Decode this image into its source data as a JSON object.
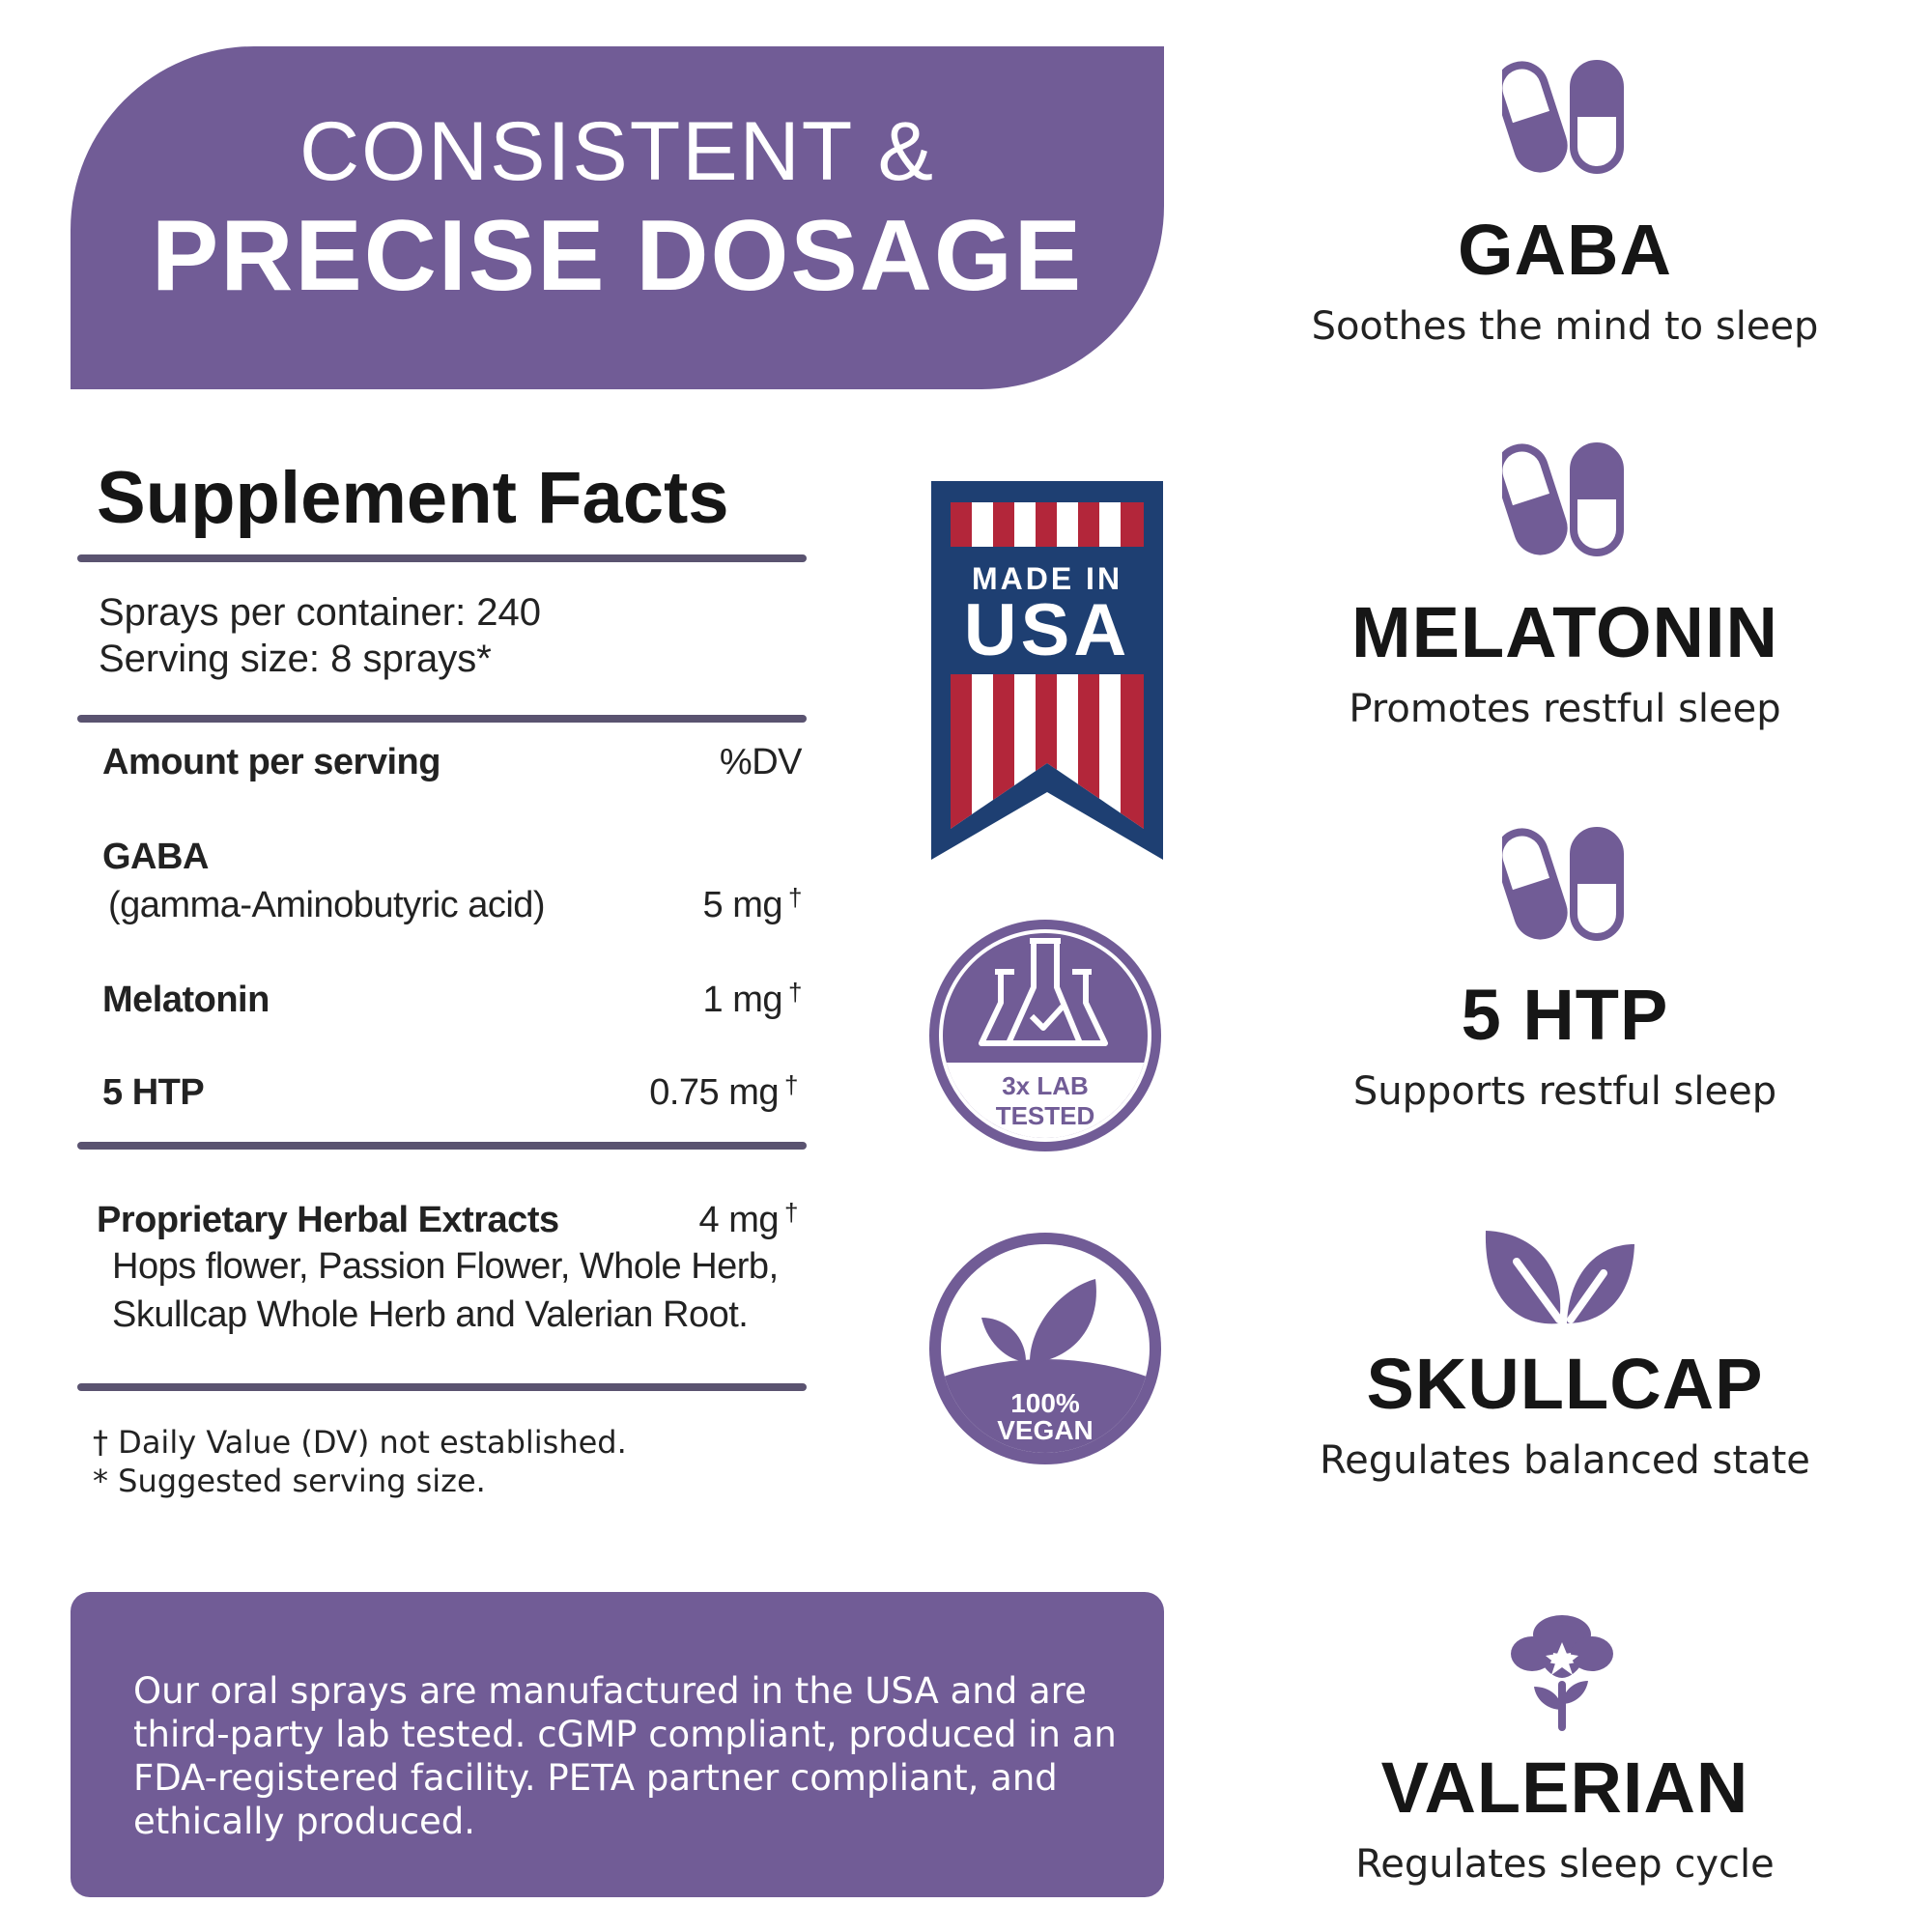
{
  "header": {
    "line1": "CONSISTENT &",
    "line2": "PRECISE DOSAGE"
  },
  "facts": {
    "title": "Supplement Facts",
    "sprays_per_container": "Sprays per container: 240",
    "serving_size": "Serving size: 8 sprays*",
    "amount_header": "Amount per serving",
    "dv_header": "%DV",
    "rows": [
      {
        "name": "GABA",
        "sub": "(gamma-Aminobutyric acid)",
        "amount": "5 mg",
        "mark": "†"
      },
      {
        "name": "Melatonin",
        "amount": "1 mg",
        "mark": "†"
      },
      {
        "name": "5 HTP",
        "amount": "0.75 mg",
        "mark": "†"
      }
    ],
    "proprietary": {
      "name": "Proprietary Herbal Extracts",
      "amount": "4 mg",
      "mark": "†",
      "line1": "Hops flower, Passion Flower, Whole Herb,",
      "line2": "Skullcap Whole Herb and Valerian Root."
    },
    "footnote1": "† Daily Value (DV) not established.",
    "footnote2": "* Suggested serving size."
  },
  "badges": {
    "usa_line1": "MADE IN",
    "usa_line2": "USA",
    "lab_line1": "3x LAB",
    "lab_line2": "TESTED",
    "vegan_line1": "100%",
    "vegan_line2": "VEGAN"
  },
  "bottom": {
    "text": "Our oral sprays are manufactured in the USA and are third-party lab tested. cGMP compliant, produced in an FDA-registered facility. PETA partner compliant, and ethically produced."
  },
  "ingredients": [
    {
      "name": "GABA",
      "desc": "Soothes the mind to sleep",
      "icon": "capsule-icon"
    },
    {
      "name": "MELATONIN",
      "desc": "Promotes restful sleep",
      "icon": "capsule-icon"
    },
    {
      "name": "5 HTP",
      "desc": "Supports restful sleep",
      "icon": "capsule-icon"
    },
    {
      "name": "SKULLCAP",
      "desc": "Regulates balanced state",
      "icon": "leaf-icon"
    },
    {
      "name": "VALERIAN",
      "desc": "Regulates sleep cycle",
      "icon": "flower-icon"
    }
  ],
  "colors": {
    "purple": "#715c96",
    "navy": "#1e3f72",
    "red": "#b3263a",
    "rule": "#5a5370"
  }
}
